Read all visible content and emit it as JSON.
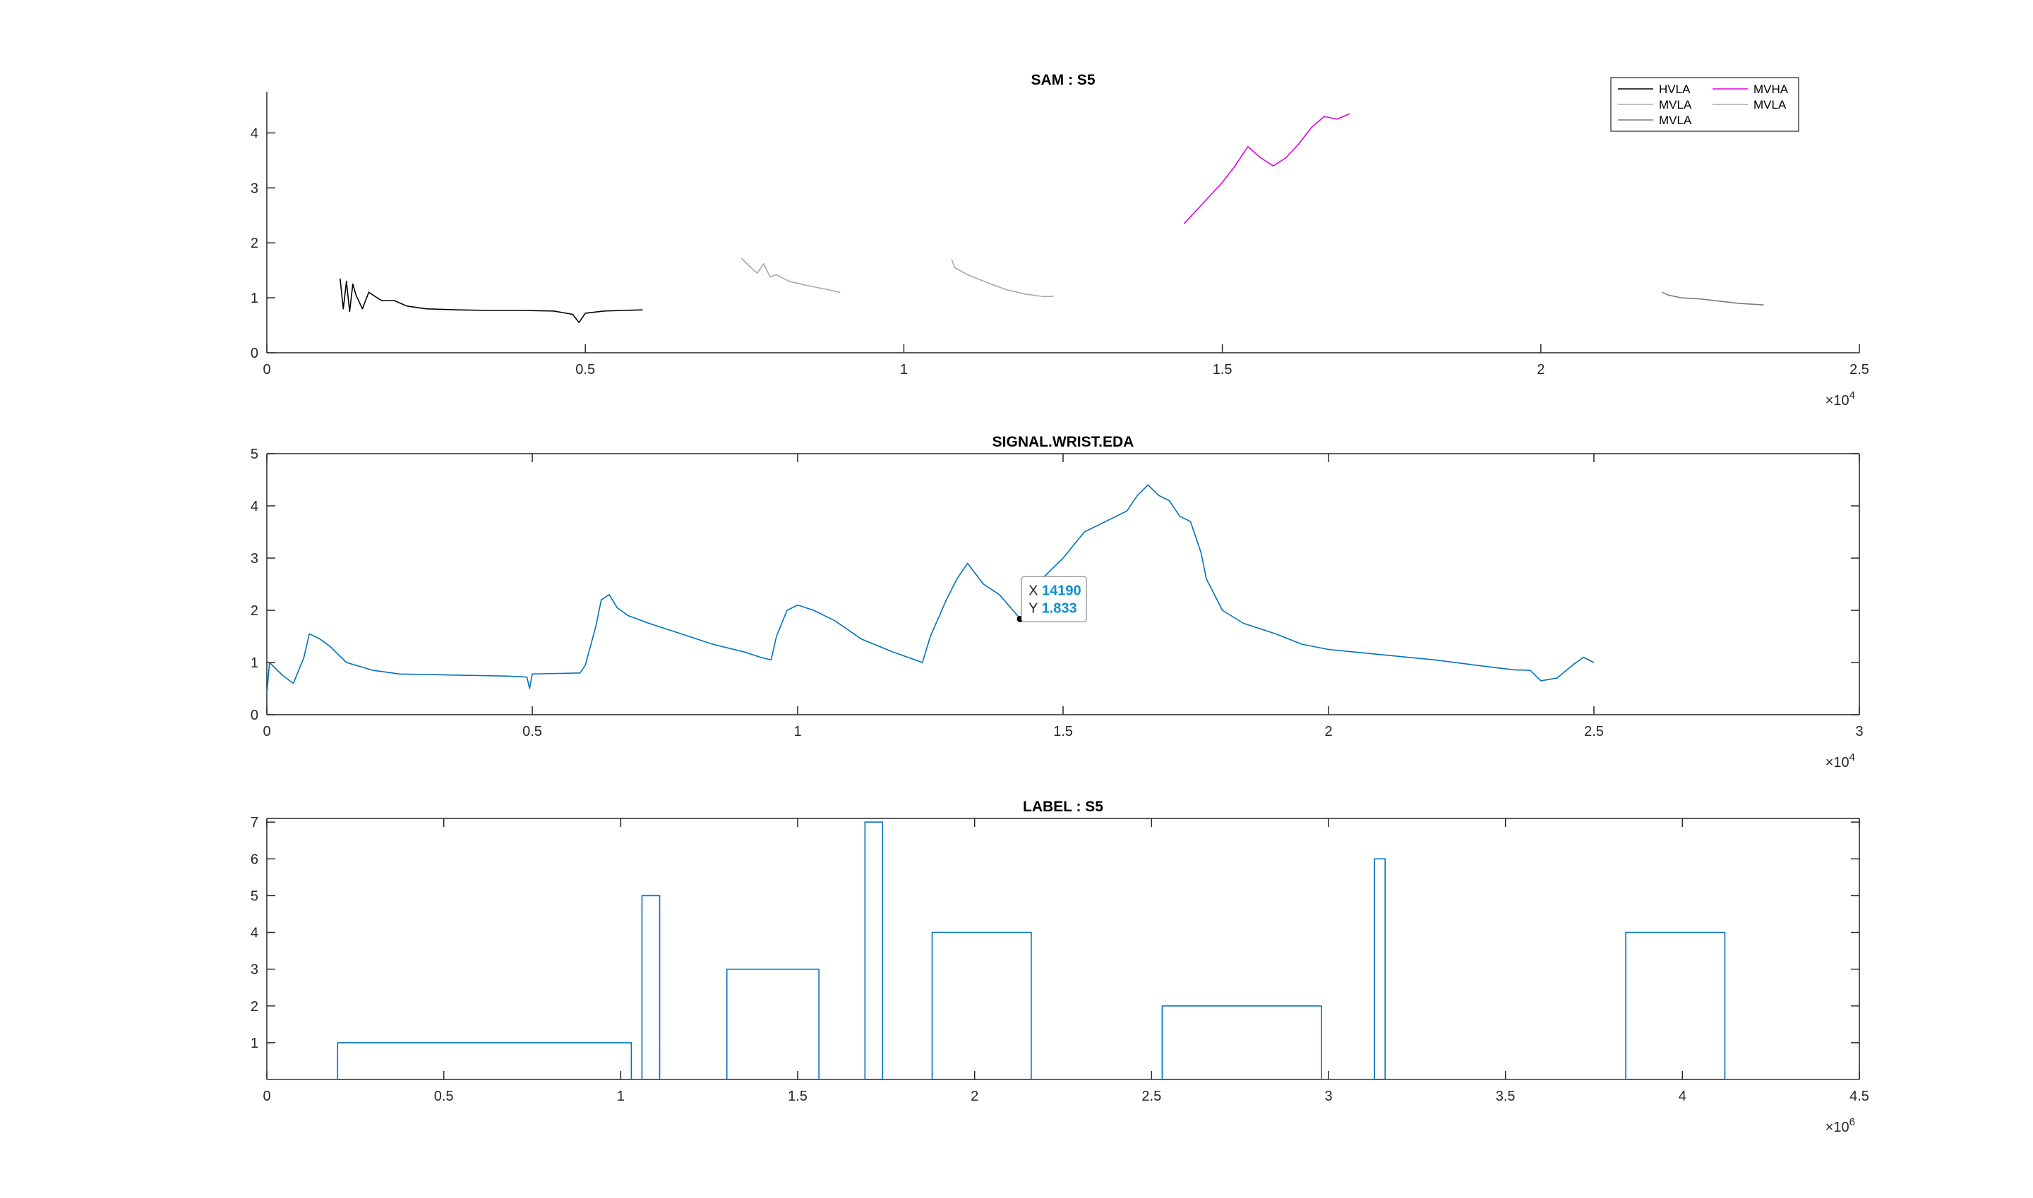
{
  "chart_data": [
    {
      "type": "line",
      "title": "SAM : S5",
      "xlim": [
        0,
        2.5
      ],
      "ylim": [
        0,
        4.75
      ],
      "x_exponent_label": "×10",
      "x_exponent_power": "4",
      "x_ticks": [
        0,
        0.5,
        1,
        1.5,
        2,
        2.5
      ],
      "x_tick_labels": [
        "0",
        "0.5",
        "1",
        "1.5",
        "2",
        "2.5"
      ],
      "y_ticks": [
        0,
        1,
        2,
        3,
        4
      ],
      "y_tick_labels": [
        "0",
        "1",
        "2",
        "3",
        "4"
      ],
      "box": "left-bottom",
      "legend": {
        "placement": "top-right",
        "columns": 2,
        "entries": [
          {
            "name": "HVLA",
            "color": "#000000"
          },
          {
            "name": "MVHA",
            "color": "#e000e0"
          },
          {
            "name": "MVLA",
            "color": "#a8a8a8"
          },
          {
            "name": "MVLA",
            "color": "#a8a8a8"
          },
          {
            "name": "MVLA",
            "color": "#7a7a7a"
          }
        ]
      },
      "series": [
        {
          "name": "HVLA",
          "color": "#000000",
          "x": [
            0.115,
            0.12,
            0.125,
            0.13,
            0.135,
            0.14,
            0.15,
            0.16,
            0.18,
            0.2,
            0.22,
            0.25,
            0.3,
            0.35,
            0.4,
            0.45,
            0.48,
            0.49,
            0.5,
            0.53,
            0.56,
            0.59
          ],
          "y": [
            1.35,
            0.8,
            1.3,
            0.75,
            1.25,
            1.05,
            0.8,
            1.1,
            0.95,
            0.95,
            0.85,
            0.8,
            0.78,
            0.77,
            0.77,
            0.76,
            0.7,
            0.55,
            0.72,
            0.76,
            0.77,
            0.78
          ]
        },
        {
          "name": "MVLA",
          "color": "#a8a8a8",
          "x": [
            0.745,
            0.76,
            0.77,
            0.78,
            0.79,
            0.8,
            0.82,
            0.85,
            0.88,
            0.9
          ],
          "y": [
            1.72,
            1.55,
            1.45,
            1.62,
            1.38,
            1.42,
            1.3,
            1.22,
            1.15,
            1.1
          ]
        },
        {
          "name": "MVLA",
          "color": "#a8a8a8",
          "x": [
            1.075,
            1.08,
            1.1,
            1.13,
            1.16,
            1.19,
            1.22,
            1.235
          ],
          "y": [
            1.7,
            1.55,
            1.42,
            1.28,
            1.15,
            1.07,
            1.02,
            1.03
          ]
        },
        {
          "name": "MVHA",
          "color": "#e000e0",
          "x": [
            1.44,
            1.46,
            1.48,
            1.5,
            1.52,
            1.54,
            1.56,
            1.58,
            1.6,
            1.62,
            1.64,
            1.66,
            1.68,
            1.7
          ],
          "y": [
            2.35,
            2.6,
            2.85,
            3.1,
            3.4,
            3.75,
            3.55,
            3.4,
            3.55,
            3.8,
            4.1,
            4.3,
            4.25,
            4.35
          ]
        },
        {
          "name": "MVLA",
          "color": "#7a7a7a",
          "x": [
            2.19,
            2.2,
            2.22,
            2.25,
            2.28,
            2.31,
            2.35
          ],
          "y": [
            1.1,
            1.05,
            1.0,
            0.98,
            0.94,
            0.9,
            0.87
          ]
        }
      ]
    },
    {
      "type": "line",
      "title": "SIGNAL.WRIST.EDA",
      "xlim": [
        0,
        3
      ],
      "ylim": [
        0,
        5
      ],
      "x_exponent_label": "×10",
      "x_exponent_power": "4",
      "x_ticks": [
        0,
        0.5,
        1,
        1.5,
        2,
        2.5,
        3
      ],
      "x_tick_labels": [
        "0",
        "0.5",
        "1",
        "1.5",
        "2",
        "2.5",
        "3"
      ],
      "y_ticks": [
        0,
        1,
        2,
        3,
        4,
        5
      ],
      "y_tick_labels": [
        "0",
        "1",
        "2",
        "3",
        "4",
        "5"
      ],
      "box": "full",
      "series": [
        {
          "color": "#0072bd",
          "x": [
            0.0,
            0.005,
            0.015,
            0.03,
            0.05,
            0.07,
            0.08,
            0.1,
            0.12,
            0.15,
            0.2,
            0.25,
            0.3,
            0.35,
            0.4,
            0.45,
            0.49,
            0.495,
            0.5,
            0.55,
            0.59,
            0.6,
            0.62,
            0.63,
            0.645,
            0.66,
            0.68,
            0.72,
            0.78,
            0.84,
            0.9,
            0.93,
            0.95,
            0.96,
            0.98,
            1.0,
            1.03,
            1.07,
            1.12,
            1.18,
            1.235,
            1.25,
            1.28,
            1.3,
            1.32,
            1.35,
            1.38,
            1.42,
            1.46,
            1.5,
            1.54,
            1.58,
            1.62,
            1.64,
            1.66,
            1.68,
            1.7,
            1.72,
            1.74,
            1.76,
            1.77,
            1.78,
            1.8,
            1.84,
            1.9,
            1.95,
            2.0,
            2.1,
            2.2,
            2.3,
            2.35,
            2.38,
            2.4,
            2.43,
            2.46,
            2.48,
            2.5
          ],
          "y": [
            0.4,
            1.0,
            0.9,
            0.75,
            0.6,
            1.1,
            1.55,
            1.45,
            1.3,
            1.0,
            0.85,
            0.78,
            0.77,
            0.76,
            0.75,
            0.74,
            0.72,
            0.5,
            0.78,
            0.79,
            0.8,
            0.95,
            1.7,
            2.2,
            2.3,
            2.05,
            1.9,
            1.75,
            1.55,
            1.35,
            1.2,
            1.1,
            1.05,
            1.5,
            2.0,
            2.1,
            2.0,
            1.8,
            1.45,
            1.2,
            1.0,
            1.5,
            2.2,
            2.6,
            2.9,
            2.5,
            2.3,
            1.83,
            2.6,
            3.0,
            3.5,
            3.7,
            3.9,
            4.2,
            4.4,
            4.2,
            4.1,
            3.8,
            3.7,
            3.1,
            2.6,
            2.4,
            2.0,
            1.75,
            1.55,
            1.35,
            1.25,
            1.15,
            1.05,
            0.92,
            0.86,
            0.85,
            0.65,
            0.7,
            0.95,
            1.1,
            1.0
          ]
        }
      ],
      "datatip": {
        "x_label": "X",
        "x_value": "14190",
        "y_label": "Y",
        "y_value": "1.833",
        "x": 1.419,
        "y": 1.833
      }
    },
    {
      "type": "line",
      "title": "LABEL : S5",
      "xlim": [
        0,
        4.5
      ],
      "ylim": [
        0,
        7.1
      ],
      "x_exponent_label": "×10",
      "x_exponent_power": "6",
      "x_ticks": [
        0,
        0.5,
        1,
        1.5,
        2,
        2.5,
        3,
        3.5,
        4,
        4.5
      ],
      "x_tick_labels": [
        "0",
        "0.5",
        "1",
        "1.5",
        "2",
        "2.5",
        "3",
        "3.5",
        "4",
        "4.5"
      ],
      "y_ticks": [
        1,
        2,
        3,
        4,
        5,
        6,
        7
      ],
      "y_tick_labels": [
        "1",
        "2",
        "3",
        "4",
        "5",
        "6",
        "7"
      ],
      "box": "full",
      "series": [
        {
          "color": "#0072bd",
          "x": [
            0.0,
            0.2,
            0.2,
            1.03,
            1.03,
            1.06,
            1.06,
            1.11,
            1.11,
            1.3,
            1.3,
            1.56,
            1.56,
            1.69,
            1.69,
            1.74,
            1.74,
            1.88,
            1.88,
            2.16,
            2.16,
            2.53,
            2.53,
            2.98,
            2.98,
            3.13,
            3.13,
            3.16,
            3.16,
            3.84,
            3.84,
            4.12,
            4.12,
            4.5
          ],
          "y": [
            0,
            0,
            1,
            1,
            0,
            0,
            5,
            5,
            0,
            0,
            3,
            3,
            0,
            0,
            7,
            7,
            0,
            0,
            4,
            4,
            0,
            0,
            2,
            2,
            0,
            0,
            6,
            6,
            0,
            0,
            4,
            4,
            0,
            0
          ]
        }
      ]
    }
  ]
}
